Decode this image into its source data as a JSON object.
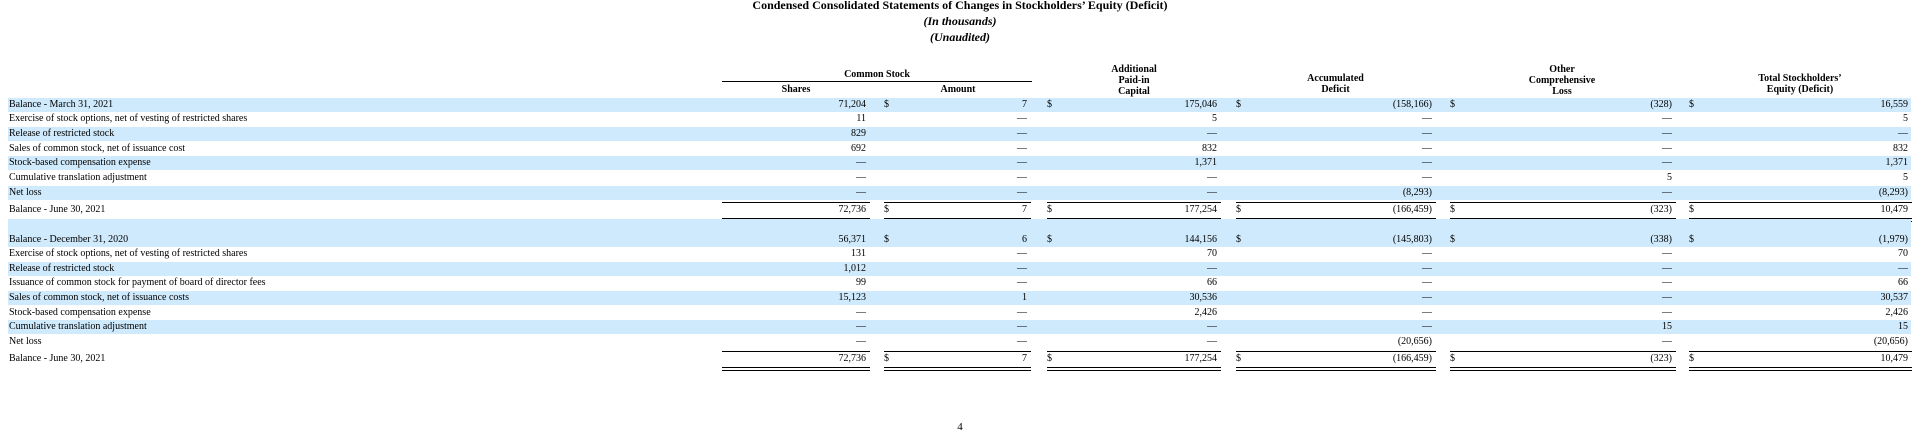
{
  "title": "Condensed Consolidated Statements of Changes in Stockholders’ Equity (Deficit)",
  "subtitle1": "(In thousands)",
  "subtitle2": "(Unaudited)",
  "headers": {
    "common_stock": "Common Stock",
    "shares": "Shares",
    "amount": "Amount",
    "apic": [
      "Additional",
      "Paid-in",
      "Capital"
    ],
    "deficit": [
      "Accumulated",
      "Deficit"
    ],
    "ocl": [
      "Other",
      "Comprehensive",
      "Loss"
    ],
    "total": [
      "Total Stockholders’",
      "Equity (Deficit)"
    ]
  },
  "sections": [
    {
      "rows": [
        {
          "label": "Balance - March 31, 2021",
          "dollars": true,
          "values": [
            "71,204",
            "7",
            "175,046",
            "(158,166)",
            "(328)",
            "16,559"
          ]
        },
        {
          "label": "Exercise of stock options, net of vesting of restricted shares",
          "values": [
            "11",
            "—",
            "5",
            "—",
            "—",
            "5"
          ]
        },
        {
          "label": "Release of restricted stock",
          "values": [
            "829",
            "—",
            "—",
            "—",
            "—",
            "—"
          ]
        },
        {
          "label": "Sales of common stock, net of issuance cost",
          "values": [
            "692",
            "—",
            "832",
            "—",
            "—",
            "832"
          ]
        },
        {
          "label": "Stock-based compensation expense",
          "values": [
            "—",
            "—",
            "1,371",
            "—",
            "—",
            "1,371"
          ]
        },
        {
          "label": "Cumulative translation adjustment",
          "values": [
            "—",
            "—",
            "—",
            "—",
            "5",
            "5"
          ]
        },
        {
          "label": "Net loss",
          "values": [
            "—",
            "—",
            "—",
            "(8,293)",
            "—",
            "(8,293)"
          ]
        },
        {
          "label": "Balance - June 30, 2021",
          "dollars": true,
          "total": true,
          "values": [
            "72,736",
            "7",
            "177,254",
            "(166,459)",
            "(323)",
            "10,479"
          ]
        }
      ]
    },
    {
      "rows": [
        {
          "label": "Balance - December 31, 2020",
          "dollars": true,
          "values": [
            "56,371",
            "6",
            "144,156",
            "(145,803)",
            "(338)",
            "(1,979)"
          ]
        },
        {
          "label": "Exercise of stock options, net of vesting of restricted shares",
          "values": [
            "131",
            "—",
            "70",
            "—",
            "—",
            "70"
          ]
        },
        {
          "label": "Release of restricted stock",
          "values": [
            "1,012",
            "—",
            "—",
            "—",
            "—",
            "—"
          ]
        },
        {
          "label": "Issuance of common stock for payment of board of director fees",
          "values": [
            "99",
            "—",
            "66",
            "—",
            "—",
            "66"
          ]
        },
        {
          "label": "Sales of common stock, net of issuance costs",
          "values": [
            "15,123",
            "1",
            "30,536",
            "—",
            "—",
            "30,537"
          ]
        },
        {
          "label": "Stock-based compensation expense",
          "values": [
            "—",
            "—",
            "2,426",
            "—",
            "—",
            "2,426"
          ]
        },
        {
          "label": "Cumulative translation adjustment",
          "values": [
            "—",
            "—",
            "—",
            "—",
            "15",
            "15"
          ]
        },
        {
          "label": "Net loss",
          "values": [
            "—",
            "—",
            "—",
            "(20,656)",
            "—",
            "(20,656)"
          ]
        },
        {
          "label": "Balance - June 30, 2021",
          "dollars": true,
          "total": true,
          "values": [
            "72,736",
            "7",
            "177,254",
            "(166,459)",
            "(323)",
            "10,479"
          ]
        }
      ]
    }
  ],
  "dollar_sign": "$",
  "page_number": "4",
  "colors": {
    "row_shade": "#cfeafc",
    "text": "#000000"
  }
}
